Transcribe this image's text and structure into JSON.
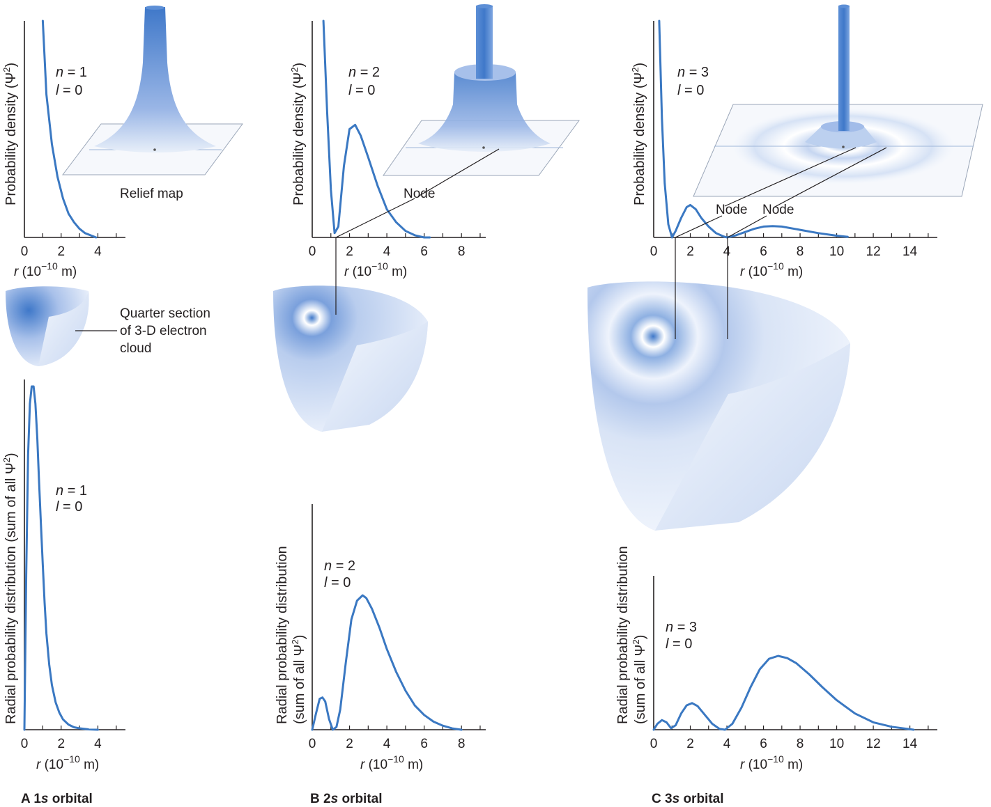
{
  "panels": {
    "a": {
      "caption_letter": "A",
      "caption_prefix": "1",
      "caption_s": "s",
      "caption_suffix": " orbital",
      "n_label": "n",
      "n_value": "= 1",
      "l_label": "l",
      "l_value": "= 0",
      "relief_label": "Relief map",
      "quarter_label_1": "Quarter section",
      "quarter_label_2": "of 3-D electron",
      "quarter_label_3": "cloud"
    },
    "b": {
      "caption_letter": "B",
      "caption_prefix": "2",
      "caption_s": "s",
      "caption_suffix": " orbital",
      "n_label": "n",
      "n_value": "= 2",
      "l_label": "l",
      "l_value": "= 0",
      "node_label": "Node"
    },
    "c": {
      "caption_letter": "C",
      "caption_prefix": "3",
      "caption_s": "s",
      "caption_suffix": " orbital",
      "n_label": "n",
      "n_value": "= 3",
      "l_label": "l",
      "l_value": "= 0",
      "node_label_1": "Node",
      "node_label_2": "Node"
    }
  },
  "axis_text": {
    "x_r": "r",
    "x_unit_open": "(10",
    "x_exponent": "−10",
    "x_unit_close": " m)",
    "y_density": "Probability density (Ψ",
    "y_density_sup": "2",
    "y_density_end": ")",
    "y_radial_full": "Radial probability distribution (sum of all Ψ",
    "y_radial_line1": "Radial probability distribution",
    "y_radial_line2": "(sum of all Ψ",
    "y_sup": "2",
    "y_end": ")"
  },
  "colors": {
    "curve": "#3a78c2",
    "axis": "#231f20",
    "cloud_dark": "#3f78c9",
    "cloud_light": "#e6eefa"
  },
  "chart_data": [
    {
      "id": "density-1s",
      "type": "line",
      "xlim": [
        0,
        5.5
      ],
      "xticks": [
        0,
        2,
        4
      ],
      "series": [
        {
          "x": [
            1.0,
            1.2,
            1.5,
            1.8,
            2.1,
            2.4,
            2.7,
            3.0,
            3.3,
            3.6,
            3.9
          ],
          "y": [
            1.0,
            0.66,
            0.43,
            0.28,
            0.18,
            0.11,
            0.07,
            0.04,
            0.02,
            0.01,
            0.0
          ]
        }
      ]
    },
    {
      "id": "density-2s",
      "type": "line",
      "xlim": [
        0,
        9.3
      ],
      "xticks": [
        0,
        2,
        4,
        6,
        8
      ],
      "series": [
        {
          "x": [
            0.6,
            0.8,
            1.0,
            1.2,
            1.4,
            1.7,
            2.0,
            2.3,
            2.6,
            3.0,
            3.5,
            4.0,
            4.5,
            5.0,
            5.5,
            6.0,
            6.3
          ],
          "y": [
            1.0,
            0.58,
            0.22,
            0.02,
            0.05,
            0.33,
            0.5,
            0.52,
            0.47,
            0.37,
            0.24,
            0.13,
            0.07,
            0.03,
            0.01,
            0.0,
            0.0
          ]
        }
      ]
    },
    {
      "id": "density-3s",
      "type": "line",
      "xlim": [
        0,
        15.5
      ],
      "xticks": [
        0,
        2,
        4,
        6,
        8,
        10,
        12,
        14
      ],
      "series": [
        {
          "x": [
            0.3,
            0.45,
            0.6,
            0.8,
            1.0,
            1.2,
            1.5,
            1.8,
            2.0,
            2.3,
            2.6,
            3.0,
            3.4,
            3.8,
            4.0,
            4.5,
            5.0,
            5.5,
            6.0,
            6.5,
            7.0,
            8.0,
            9.0,
            10.0,
            10.6
          ],
          "y": [
            1.0,
            0.55,
            0.25,
            0.06,
            0.0,
            0.03,
            0.09,
            0.14,
            0.15,
            0.13,
            0.09,
            0.05,
            0.02,
            0.005,
            0.0,
            0.01,
            0.025,
            0.04,
            0.05,
            0.052,
            0.05,
            0.035,
            0.02,
            0.008,
            0.003
          ]
        }
      ]
    },
    {
      "id": "radial-1s",
      "type": "line",
      "xlim": [
        0,
        5.5
      ],
      "xticks": [
        0,
        2,
        4
      ],
      "series": [
        {
          "x": [
            0,
            0.1,
            0.2,
            0.3,
            0.4,
            0.5,
            0.6,
            0.7,
            0.8,
            0.9,
            1.0,
            1.1,
            1.2,
            1.35,
            1.5,
            1.7,
            1.9,
            2.1,
            2.4,
            2.7,
            3.0,
            3.5,
            4.0
          ],
          "y": [
            0,
            0.45,
            0.8,
            0.95,
            1.0,
            1.0,
            0.95,
            0.85,
            0.72,
            0.6,
            0.48,
            0.37,
            0.28,
            0.19,
            0.13,
            0.08,
            0.05,
            0.03,
            0.015,
            0.007,
            0.004,
            0.001,
            0.0
          ]
        }
      ]
    },
    {
      "id": "radial-2s",
      "type": "line",
      "xlim": [
        0,
        9.3
      ],
      "xticks": [
        0,
        2,
        4,
        6,
        8
      ],
      "series": [
        {
          "x": [
            0,
            0.2,
            0.4,
            0.55,
            0.7,
            0.9,
            1.1,
            1.3,
            1.5,
            1.8,
            2.1,
            2.4,
            2.7,
            2.9,
            3.2,
            3.6,
            4.0,
            4.5,
            5.0,
            5.5,
            6.0,
            6.5,
            7.0,
            7.5,
            8.0
          ],
          "y": [
            0,
            0.12,
            0.23,
            0.24,
            0.21,
            0.08,
            0.0,
            0.02,
            0.15,
            0.5,
            0.82,
            0.96,
            1.0,
            0.98,
            0.9,
            0.76,
            0.6,
            0.43,
            0.29,
            0.18,
            0.11,
            0.06,
            0.03,
            0.01,
            0.0
          ]
        }
      ]
    },
    {
      "id": "radial-3s",
      "type": "line",
      "xlim": [
        0,
        15.5
      ],
      "xticks": [
        0,
        2,
        4,
        6,
        8,
        10,
        12,
        14
      ],
      "series": [
        {
          "x": [
            0,
            0.2,
            0.45,
            0.7,
            0.95,
            1.2,
            1.5,
            1.8,
            2.1,
            2.4,
            2.8,
            3.2,
            3.6,
            3.9,
            4.3,
            4.8,
            5.3,
            5.8,
            6.3,
            6.8,
            7.3,
            7.8,
            8.5,
            9.2,
            10.0,
            11.0,
            12.0,
            13.0,
            14.2
          ],
          "y": [
            0,
            0.08,
            0.13,
            0.1,
            0.02,
            0.06,
            0.22,
            0.33,
            0.36,
            0.32,
            0.2,
            0.08,
            0.01,
            0.0,
            0.08,
            0.3,
            0.58,
            0.82,
            0.96,
            1.0,
            0.97,
            0.9,
            0.75,
            0.58,
            0.4,
            0.22,
            0.1,
            0.04,
            0.0
          ]
        }
      ]
    }
  ]
}
